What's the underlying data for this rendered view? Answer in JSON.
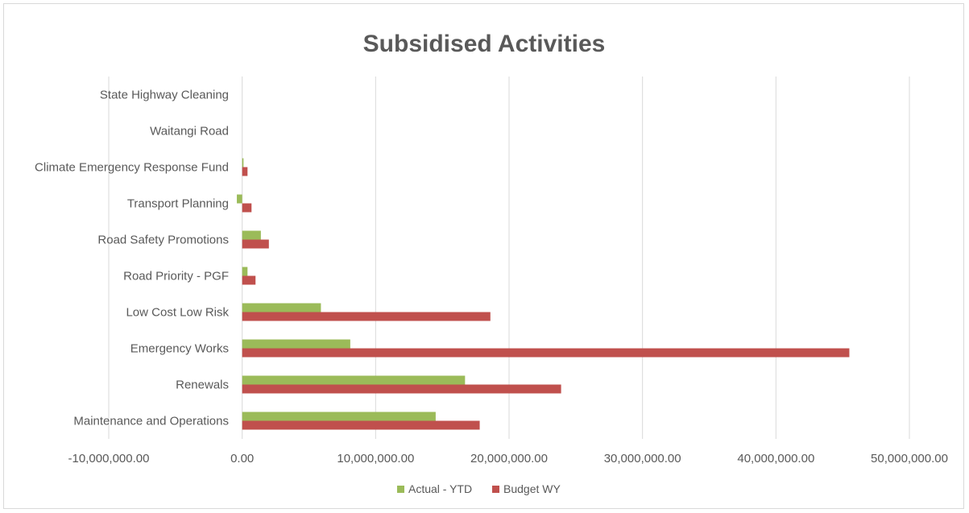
{
  "chart_data": {
    "type": "bar",
    "orientation": "horizontal",
    "title": "Subsidised Activities",
    "categories": [
      "Maintenance and Operations",
      "Renewals",
      "Emergency Works",
      "Low Cost Low Risk",
      "Road Priority - PGF",
      "Road Safety Promotions",
      "Transport Planning",
      "Climate Emergency Response Fund",
      "Waitangi Road",
      "State Highway Cleaning"
    ],
    "series": [
      {
        "name": "Actual - YTD",
        "color": "#9bbb59",
        "values": [
          14500000,
          16700000,
          8100000,
          5900000,
          400000,
          1400000,
          -400000,
          100000,
          0,
          0
        ]
      },
      {
        "name": "Budget WY",
        "color": "#c0504d",
        "values": [
          17800000,
          23900000,
          45500000,
          18600000,
          1000000,
          2000000,
          700000,
          400000,
          0,
          0
        ]
      }
    ],
    "xlim": [
      -10000000,
      50000000
    ],
    "x_ticks": [
      -10000000,
      0,
      10000000,
      20000000,
      30000000,
      40000000,
      50000000
    ],
    "x_tick_labels": [
      "-10,000,000.00",
      "0.00",
      "10,000,000.00",
      "20,000,000.00",
      "30,000,000.00",
      "40,000,000.00",
      "50,000,000.00"
    ],
    "grid": true,
    "legend_position": "bottom"
  }
}
